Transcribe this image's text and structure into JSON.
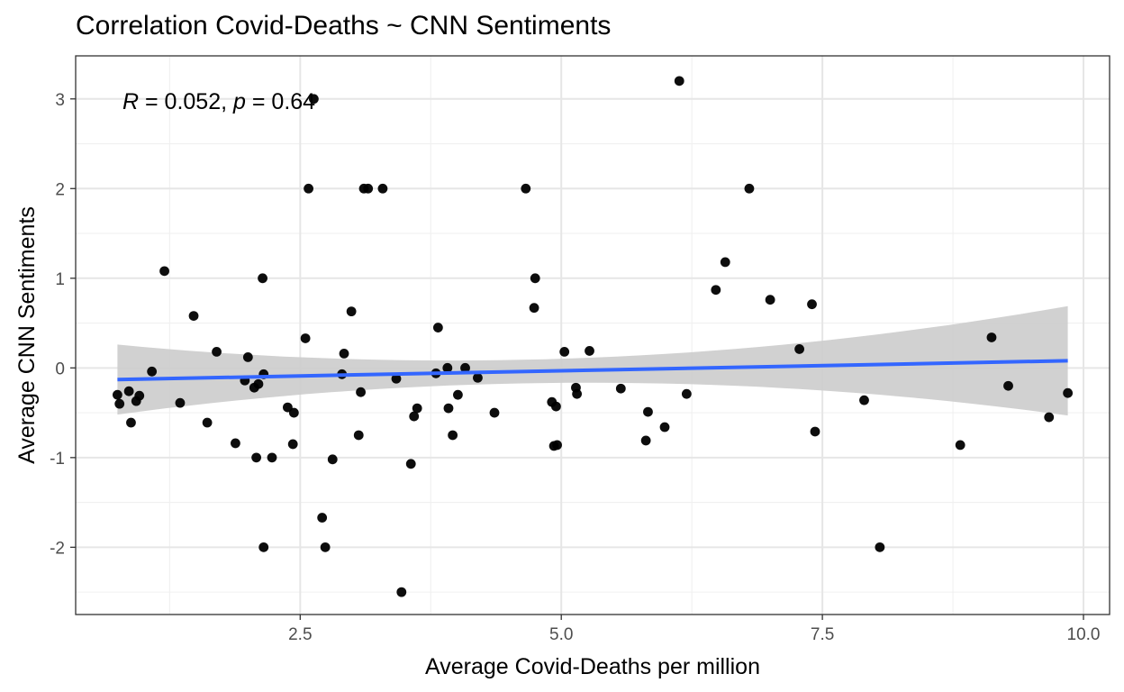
{
  "chart_data": {
    "type": "scatter",
    "title": "Correlation Covid-Deaths ~ CNN Sentiments",
    "xlabel": "Average Covid-Deaths per million",
    "ylabel": "Average CNN Sentiments",
    "xlim": [
      0.35,
      10.25
    ],
    "ylim": [
      -2.75,
      3.48
    ],
    "x_ticks": [
      2.5,
      5.0,
      7.5,
      10.0
    ],
    "x_tick_labels": [
      "2.5",
      "5.0",
      "7.5",
      "10.0"
    ],
    "y_ticks": [
      3,
      2,
      1,
      0,
      -1,
      -2
    ],
    "y_tick_labels": [
      "3",
      "2",
      "1",
      "0",
      "-1",
      "-2"
    ],
    "grid": true,
    "annotation": {
      "r_symbol": "R",
      "r_value": " = 0.052, ",
      "p_symbol": "p",
      "p_value": " = 0.64"
    },
    "regression": {
      "x": [
        0.75,
        9.85
      ],
      "y": [
        -0.13,
        0.08
      ],
      "ci_upper": [
        0.26,
        0.69
      ],
      "ci_lower": [
        -0.52,
        -0.53
      ],
      "ci_mid": [
        0.14,
        0.0
      ],
      "color": "#3366ff"
    },
    "points_color": "#000000",
    "ci_color": "#cccccc",
    "points": [
      [
        0.75,
        -0.3
      ],
      [
        0.77,
        -0.4
      ],
      [
        0.86,
        -0.26
      ],
      [
        0.88,
        -0.61
      ],
      [
        0.93,
        -0.37
      ],
      [
        0.96,
        -0.31
      ],
      [
        1.08,
        -0.04
      ],
      [
        1.2,
        1.08
      ],
      [
        1.35,
        -0.39
      ],
      [
        1.48,
        0.58
      ],
      [
        1.61,
        -0.61
      ],
      [
        1.7,
        0.18
      ],
      [
        1.88,
        -0.84
      ],
      [
        1.97,
        -0.14
      ],
      [
        2.0,
        0.12
      ],
      [
        2.06,
        -0.22
      ],
      [
        2.08,
        -1.0
      ],
      [
        2.1,
        -0.18
      ],
      [
        2.14,
        1.0
      ],
      [
        2.15,
        -0.07
      ],
      [
        2.15,
        -2.0
      ],
      [
        2.23,
        -1.0
      ],
      [
        2.38,
        -0.44
      ],
      [
        2.43,
        -0.85
      ],
      [
        2.44,
        -0.5
      ],
      [
        2.55,
        0.33
      ],
      [
        2.58,
        2.0
      ],
      [
        2.63,
        3.0
      ],
      [
        2.71,
        -1.67
      ],
      [
        2.74,
        -2.0
      ],
      [
        2.81,
        -1.02
      ],
      [
        2.9,
        -0.07
      ],
      [
        2.92,
        0.16
      ],
      [
        2.99,
        0.63
      ],
      [
        3.06,
        -0.75
      ],
      [
        3.08,
        -0.27
      ],
      [
        3.11,
        2.0
      ],
      [
        3.15,
        2.0
      ],
      [
        3.29,
        2.0
      ],
      [
        3.42,
        -0.12
      ],
      [
        3.47,
        -2.5
      ],
      [
        3.56,
        -1.07
      ],
      [
        3.59,
        -0.54
      ],
      [
        3.62,
        -0.45
      ],
      [
        3.8,
        -0.06
      ],
      [
        3.82,
        0.45
      ],
      [
        3.91,
        0.0
      ],
      [
        3.92,
        -0.45
      ],
      [
        3.96,
        -0.75
      ],
      [
        4.01,
        -0.3
      ],
      [
        4.08,
        0.0
      ],
      [
        4.2,
        -0.11
      ],
      [
        4.36,
        -0.5
      ],
      [
        4.66,
        2.0
      ],
      [
        4.74,
        0.67
      ],
      [
        4.75,
        1.0
      ],
      [
        4.91,
        -0.38
      ],
      [
        4.93,
        -0.87
      ],
      [
        4.95,
        -0.43
      ],
      [
        4.96,
        -0.86
      ],
      [
        5.03,
        0.18
      ],
      [
        5.14,
        -0.22
      ],
      [
        5.15,
        -0.29
      ],
      [
        5.27,
        0.19
      ],
      [
        5.57,
        -0.23
      ],
      [
        5.81,
        -0.81
      ],
      [
        5.83,
        -0.49
      ],
      [
        5.99,
        -0.66
      ],
      [
        6.13,
        3.2
      ],
      [
        6.2,
        -0.29
      ],
      [
        6.48,
        0.87
      ],
      [
        6.57,
        1.18
      ],
      [
        6.8,
        2.0
      ],
      [
        7.0,
        0.76
      ],
      [
        7.28,
        0.21
      ],
      [
        7.4,
        0.71
      ],
      [
        7.43,
        -0.71
      ],
      [
        7.9,
        -0.36
      ],
      [
        8.05,
        -2.0
      ],
      [
        8.82,
        -0.86
      ],
      [
        9.12,
        0.34
      ],
      [
        9.28,
        -0.2
      ],
      [
        9.67,
        -0.55
      ],
      [
        9.85,
        -0.28
      ]
    ]
  }
}
